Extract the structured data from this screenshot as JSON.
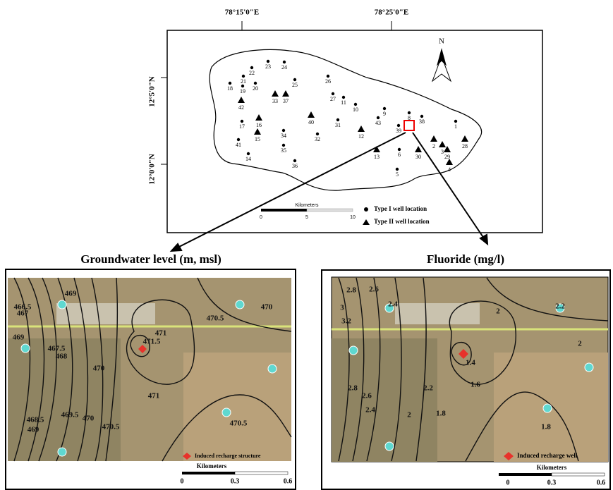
{
  "top_map": {
    "lon_labels": [
      "78°15'0\"E",
      "78°25'0\"E"
    ],
    "lat_labels": [
      "12°5'0\"N",
      "12°0'0\"N"
    ],
    "north": "N",
    "scale_title": "Kilometers",
    "scale_ticks": [
      "0",
      "5",
      "10"
    ],
    "legend": [
      "Type I well location",
      "Type II well location"
    ],
    "type1_wells": [
      "18",
      "19",
      "20",
      "21",
      "22",
      "23",
      "24",
      "25",
      "26",
      "27",
      "11",
      "10",
      "9",
      "43",
      "31",
      "32",
      "34",
      "35",
      "36",
      "17",
      "41",
      "14",
      "39",
      "38",
      "8",
      "6",
      "5",
      "1"
    ],
    "type2_wells": [
      "42",
      "33",
      "37",
      "16",
      "15",
      "40",
      "12",
      "13",
      "30",
      "2",
      "3",
      "29",
      "4",
      "28"
    ]
  },
  "left_panel": {
    "title": "Groundwater level (m, msl)",
    "contour_labels": [
      "469",
      "466.5",
      "467",
      "469",
      "467.5",
      "468",
      "470",
      "471",
      "471.5",
      "470.5",
      "470",
      "471",
      "468.5",
      "469.5",
      "470",
      "470.5",
      "469",
      "470.5"
    ],
    "legend": "Induced recharge structure",
    "scale_title": "Kilometers",
    "scale_ticks": [
      "0",
      "0.3",
      "0.6"
    ]
  },
  "right_panel": {
    "title": "Fluoride (mg/l)",
    "contour_labels": [
      "2.8",
      "2.6",
      "2.4",
      "3",
      "3.2",
      "2",
      "2.2",
      "2",
      "1.4",
      "1.6",
      "2.2",
      "2.8",
      "2.6",
      "2.4",
      "2",
      "1.8",
      "1.8"
    ],
    "legend": "Induced recharge well",
    "scale_title": "Kilometers",
    "scale_ticks": [
      "0",
      "0.3",
      "0.6"
    ]
  }
}
